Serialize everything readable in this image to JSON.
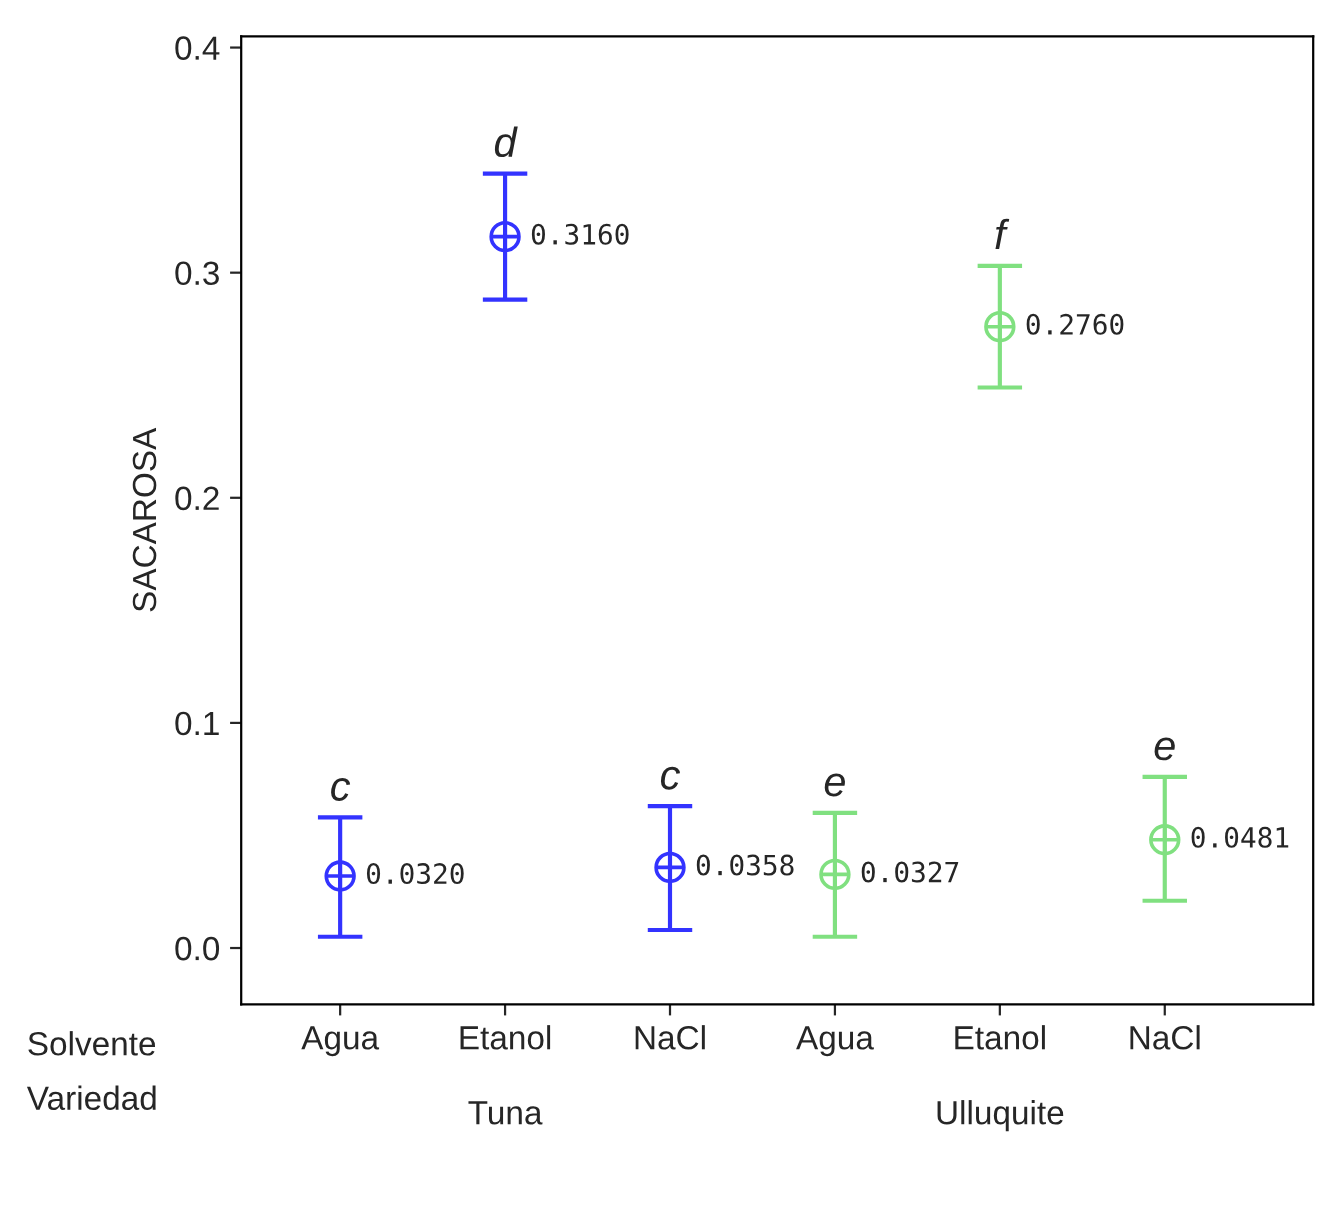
{
  "chart_data": {
    "type": "scatter",
    "ylabel": "SACAROSA",
    "categories": [
      "Agua",
      "Etanol",
      "NaCl",
      "Agua",
      "Etanol",
      "NaCl"
    ],
    "values": [
      0.032,
      0.316,
      0.0358,
      0.0327,
      0.276,
      0.0481
    ],
    "errors": [
      [
        0.005,
        0.058
      ],
      [
        0.288,
        0.344
      ],
      [
        0.008,
        0.063
      ],
      [
        0.005,
        0.06
      ],
      [
        0.249,
        0.303
      ],
      [
        0.021,
        0.076
      ]
    ],
    "colors": [
      "#3333ff",
      "#3333ff",
      "#3333ff",
      "#80e080",
      "#80e080",
      "#80e080"
    ],
    "value_labels": [
      "0.0320",
      "0.3160",
      "0.0358",
      "0.0327",
      "0.2760",
      "0.0481"
    ],
    "marker": "circle",
    "ylim": [
      -0.025,
      0.405
    ],
    "yticks": [
      {
        "value": 0.0,
        "label": "0.0"
      },
      {
        "value": 0.1,
        "label": "0.1"
      },
      {
        "value": 0.2,
        "label": "0.2"
      },
      {
        "value": 0.3,
        "label": "0.3"
      },
      {
        "value": 0.4,
        "label": "0.4"
      }
    ],
    "grid": false,
    "annotations": [
      {
        "text": "c",
        "y": 0.058
      },
      {
        "text": "d",
        "y": 0.344
      },
      {
        "text": "c",
        "y": 0.063
      },
      {
        "text": "e",
        "y": 0.06
      },
      {
        "text": "f",
        "y": 0.303
      },
      {
        "text": "e",
        "y": 0.076
      },
      "Solvente",
      "Variedad",
      "Tuna",
      "Ulluquite"
    ]
  }
}
